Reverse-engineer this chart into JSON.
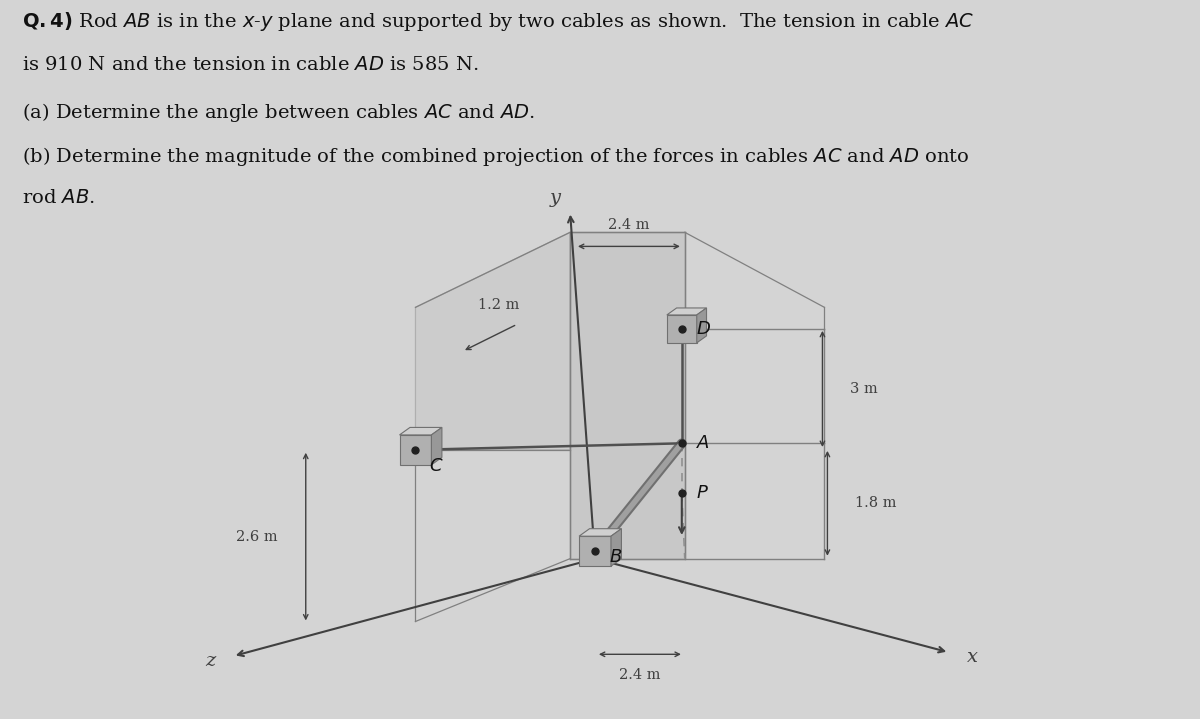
{
  "bg_color": "#d4d4d4",
  "text_color": "#111111",
  "title_line1": "Q.4) Rod AB is in the x-y plane and supported by two cables as shown.  The tension in cable AC",
  "title_line2": "is 910 N and the tension in cable AD is 585 N.",
  "title_line3": "(a) Determine the angle between cables AC and AD.",
  "title_line4": "(b) Determine the magnitude of the combined projection of the forces in cables AC and AD onto",
  "title_line5": "rod AB.",
  "dim_24_top": "2.4 m",
  "dim_12": "1.2 m",
  "dim_3": "3 m",
  "dim_26": "2.6 m",
  "dim_24_bot": "2.4 m",
  "dim_18": "1.8 m",
  "label_A": "A",
  "label_B": "B",
  "label_C": "C",
  "label_D": "D",
  "label_P": "P",
  "label_x": "x",
  "label_y": "y",
  "label_z": "z",
  "wall_face_color": "#c0c0c0",
  "wall_edge_color": "#808080",
  "bracket_front_color": "#b0b0b0",
  "bracket_top_color": "#d0d0d0",
  "bracket_side_color": "#989898",
  "cable_color": "#505050",
  "rod_outer_color": "#707070",
  "rod_inner_color": "#a0a0a0",
  "axis_color": "#404040",
  "point_color": "#202020",
  "dim_color": "#404040",
  "dashed_color": "#909090"
}
